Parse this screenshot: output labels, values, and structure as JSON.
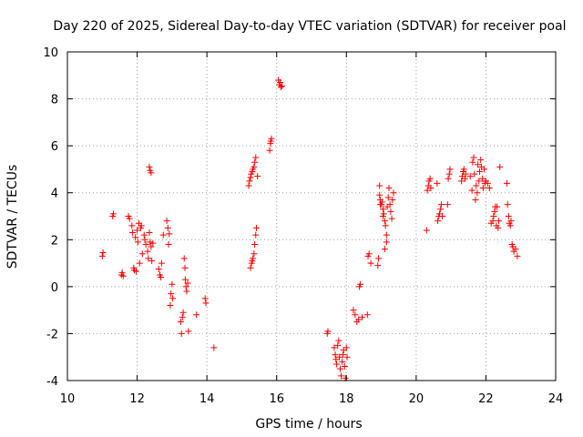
{
  "chart_data": {
    "type": "scatter",
    "title": "Day 220 of 2025, Sidereal Day-to-day VTEC variation (SDTVAR) for receiver poal",
    "xlabel": "GPS time / hours",
    "ylabel": "SDTVAR / TECUs",
    "xlim": [
      10,
      24
    ],
    "ylim": [
      -4,
      10
    ],
    "xticks": [
      "10",
      "12",
      "14",
      "16",
      "18",
      "20",
      "22",
      "24"
    ],
    "yticks": [
      "-4",
      "-2",
      "0",
      "2",
      "4",
      "6",
      "8",
      "10"
    ],
    "grid": true,
    "marker": "plus",
    "color": "#ff0000",
    "series": [
      {
        "name": "SDTVAR",
        "x": [
          11.0,
          11.02,
          11.3,
          11.32,
          11.55,
          11.57,
          11.6,
          11.75,
          11.78,
          11.85,
          11.87,
          11.9,
          11.92,
          11.95,
          11.97,
          12.0,
          12.02,
          12.05,
          12.07,
          12.1,
          12.12,
          12.15,
          12.2,
          12.22,
          12.25,
          12.3,
          12.32,
          12.35,
          12.37,
          12.4,
          12.42,
          12.45,
          12.35,
          12.37,
          12.4,
          12.62,
          12.65,
          12.68,
          12.7,
          12.75,
          12.85,
          12.88,
          12.9,
          12.92,
          12.95,
          12.97,
          13.0,
          13.02,
          13.25,
          13.27,
          13.3,
          13.32,
          13.35,
          13.37,
          13.38,
          13.4,
          13.42,
          13.45,
          13.47,
          13.7,
          13.95,
          13.97,
          14.2,
          15.2,
          15.22,
          15.25,
          15.27,
          15.3,
          15.32,
          15.35,
          15.37,
          15.4,
          15.45,
          15.25,
          15.28,
          15.3,
          15.32,
          15.35,
          15.37,
          15.4,
          15.42,
          15.8,
          15.82,
          15.85,
          15.83,
          16.05,
          16.08,
          16.1,
          16.12,
          16.15,
          17.45,
          17.47,
          17.65,
          17.68,
          17.7,
          17.72,
          17.75,
          17.78,
          17.8,
          17.82,
          17.85,
          17.88,
          17.9,
          17.92,
          17.95,
          17.97,
          18.0,
          18.02,
          18.2,
          18.25,
          18.3,
          18.35,
          18.37,
          18.4,
          18.45,
          18.6,
          18.62,
          18.65,
          18.7,
          18.9,
          18.92,
          18.95,
          18.97,
          19.0,
          19.02,
          19.05,
          19.07,
          19.1,
          19.12,
          19.15,
          19.17,
          19.2,
          19.22,
          19.25,
          19.27,
          19.3,
          19.32,
          19.35,
          18.95,
          18.97,
          19.05,
          19.1,
          19.15,
          20.3,
          20.32,
          20.35,
          20.37,
          20.4,
          20.42,
          20.6,
          20.62,
          20.65,
          20.67,
          20.7,
          20.72,
          20.75,
          20.9,
          20.92,
          20.95,
          20.97,
          21.3,
          21.32,
          21.35,
          21.37,
          21.4,
          21.42,
          21.55,
          21.6,
          21.62,
          21.65,
          21.67,
          21.7,
          21.72,
          21.75,
          21.77,
          21.8,
          21.82,
          21.85,
          21.87,
          21.9,
          21.92,
          21.95,
          21.97,
          22.0,
          22.05,
          22.1,
          22.15,
          22.2,
          22.22,
          22.25,
          22.27,
          22.3,
          22.32,
          22.35,
          22.37,
          22.4,
          22.6,
          22.62,
          22.65,
          22.67,
          22.7,
          22.72,
          22.75,
          22.77,
          22.8,
          22.85,
          22.9
        ],
        "y": [
          1.3,
          1.45,
          3.0,
          3.1,
          0.5,
          0.6,
          0.45,
          3.0,
          2.9,
          2.6,
          2.3,
          0.8,
          0.7,
          2.1,
          0.65,
          2.4,
          1.9,
          2.7,
          1.0,
          2.5,
          2.6,
          1.4,
          2.2,
          2.0,
          1.8,
          1.5,
          1.2,
          2.3,
          1.9,
          1.7,
          1.1,
          1.85,
          5.1,
          4.95,
          4.85,
          0.75,
          0.5,
          0.4,
          1.0,
          2.2,
          2.8,
          2.5,
          1.8,
          2.25,
          -0.8,
          -0.3,
          0.1,
          -0.5,
          -1.5,
          -2.0,
          -1.3,
          -1.1,
          1.2,
          0.8,
          0.3,
          0.0,
          -0.2,
          0.15,
          -1.9,
          -1.2,
          -0.5,
          -0.7,
          -2.6,
          4.3,
          4.5,
          4.65,
          4.8,
          4.9,
          5.0,
          5.1,
          5.3,
          5.5,
          4.7,
          0.8,
          1.0,
          1.1,
          1.2,
          1.4,
          1.8,
          2.2,
          2.5,
          5.8,
          6.1,
          6.3,
          6.2,
          8.8,
          8.6,
          8.7,
          8.5,
          8.55,
          -2.0,
          -1.9,
          -2.6,
          -2.9,
          -3.1,
          -3.3,
          -2.5,
          -2.3,
          -3.0,
          -3.5,
          -3.8,
          -3.2,
          -2.9,
          -2.7,
          -3.4,
          -3.9,
          -2.6,
          -3.0,
          -1.0,
          -1.2,
          -1.5,
          -1.4,
          0.0,
          0.1,
          -1.3,
          -1.2,
          1.3,
          1.4,
          1.0,
          0.9,
          1.2,
          3.9,
          3.7,
          3.5,
          3.6,
          3.3,
          3.1,
          2.8,
          2.6,
          2.2,
          3.4,
          3.8,
          4.2,
          3.5,
          3.2,
          2.9,
          3.7,
          4.0,
          4.3,
          3.5,
          3.0,
          1.6,
          1.9,
          2.4,
          4.1,
          4.3,
          4.5,
          4.6,
          4.2,
          4.4,
          2.8,
          3.0,
          3.1,
          3.3,
          3.5,
          3.0,
          3.5,
          4.6,
          4.8,
          5.0,
          4.5,
          4.7,
          4.9,
          5.0,
          4.6,
          4.8,
          4.7,
          4.1,
          5.3,
          5.5,
          4.8,
          3.7,
          4.3,
          4.0,
          5.2,
          4.5,
          4.9,
          5.4,
          5.1,
          4.6,
          4.2,
          5.0,
          4.4,
          4.5,
          4.4,
          4.2,
          2.7,
          2.8,
          3.0,
          3.2,
          3.4,
          2.6,
          3.4,
          2.5,
          2.8,
          5.1,
          4.4,
          3.5,
          3.0,
          2.7,
          2.6,
          2.8,
          1.8,
          1.7,
          1.5,
          1.6,
          1.3
        ]
      }
    ]
  }
}
